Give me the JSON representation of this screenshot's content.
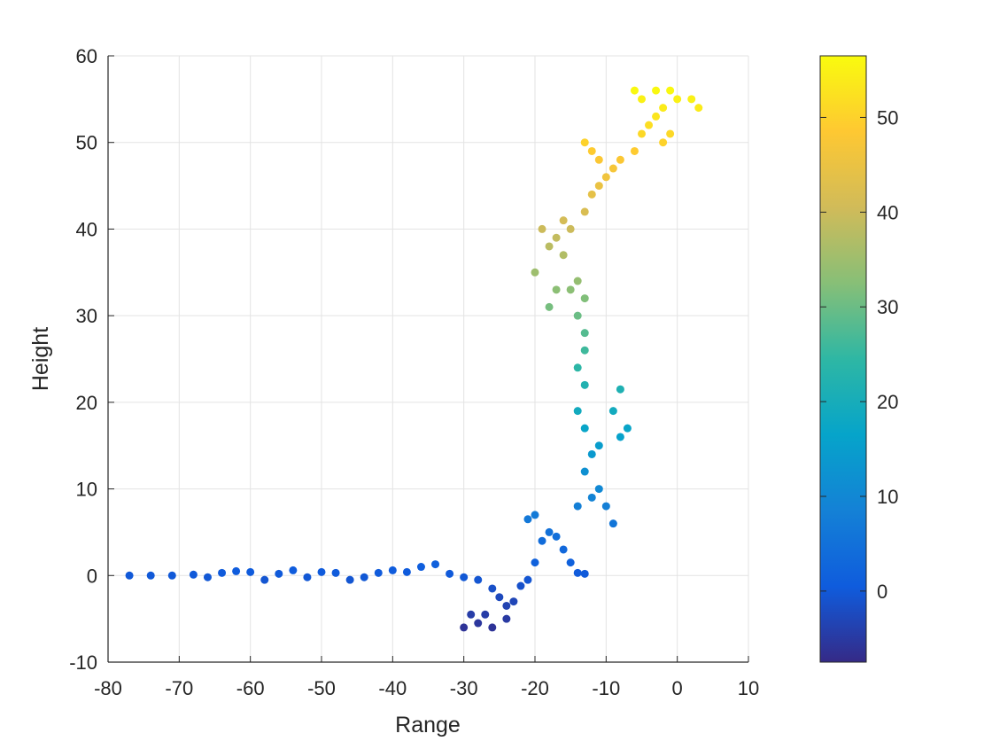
{
  "chart_data": {
    "type": "scatter",
    "xlabel": "Range",
    "ylabel": "Height",
    "xlim": [
      -80,
      10
    ],
    "ylim": [
      -10,
      60
    ],
    "xticks": [
      "-80",
      "-70",
      "-60",
      "-50",
      "-40",
      "-30",
      "-20",
      "-10",
      "0",
      "10"
    ],
    "yticks": [
      "-10",
      "0",
      "10",
      "20",
      "30",
      "40",
      "50",
      "60"
    ],
    "grid": true,
    "colormap": "parula",
    "color_by": "y",
    "colorbar": {
      "range": [
        -7.5,
        56.5
      ],
      "ticks": [
        "0",
        "10",
        "20",
        "30",
        "40",
        "50"
      ],
      "placement": "right"
    },
    "colormap_stops": [
      "#352a87",
      "#0f5cdd",
      "#1481d6",
      "#06a4ca",
      "#2eb7a4",
      "#87bf77",
      "#d1bb59",
      "#fec832",
      "#f9fb0e"
    ],
    "series": [
      {
        "points": [
          [
            -77,
            0
          ],
          [
            -74,
            0
          ],
          [
            -71,
            0
          ],
          [
            -68,
            0.1
          ],
          [
            -66,
            -0.2
          ],
          [
            -64,
            0.3
          ],
          [
            -62,
            0.5
          ],
          [
            -60,
            0.4
          ],
          [
            -58,
            -0.5
          ],
          [
            -56,
            0.2
          ],
          [
            -54,
            0.6
          ],
          [
            -52,
            -0.2
          ],
          [
            -50,
            0.4
          ],
          [
            -48,
            0.3
          ],
          [
            -46,
            -0.5
          ],
          [
            -44,
            -0.2
          ],
          [
            -42,
            0.3
          ],
          [
            -40,
            0.6
          ],
          [
            -38,
            0.4
          ],
          [
            -36,
            1
          ],
          [
            -34,
            1.3
          ],
          [
            -32,
            0.2
          ],
          [
            -30,
            -0.2
          ],
          [
            -28,
            -0.5
          ],
          [
            -26,
            -1.5
          ],
          [
            -25,
            -2.5
          ],
          [
            -24,
            -3.5
          ],
          [
            -23,
            -3
          ],
          [
            -27,
            -4.5
          ],
          [
            -26,
            -6
          ],
          [
            -28,
            -5.5
          ],
          [
            -30,
            -6
          ],
          [
            -29,
            -4.5
          ],
          [
            -24,
            -5
          ],
          [
            -22,
            -1.2
          ],
          [
            -21,
            -0.5
          ],
          [
            -20,
            1.5
          ],
          [
            -19,
            4
          ],
          [
            -21,
            6.5
          ],
          [
            -20,
            7
          ],
          [
            -18,
            5
          ],
          [
            -17,
            4.5
          ],
          [
            -16,
            3
          ],
          [
            -15,
            1.5
          ],
          [
            -14,
            0.3
          ],
          [
            -13,
            0.2
          ],
          [
            -14,
            8
          ],
          [
            -12,
            9
          ],
          [
            -11,
            10
          ],
          [
            -10,
            8
          ],
          [
            -9,
            6
          ],
          [
            -13,
            12
          ],
          [
            -12,
            14
          ],
          [
            -11,
            15
          ],
          [
            -13,
            17
          ],
          [
            -8,
            16
          ],
          [
            -7,
            17
          ],
          [
            -9,
            19
          ],
          [
            -8,
            21.5
          ],
          [
            -14,
            19
          ],
          [
            -13,
            22
          ],
          [
            -14,
            24
          ],
          [
            -13,
            26
          ],
          [
            -13,
            28
          ],
          [
            -14,
            30
          ],
          [
            -13,
            32
          ],
          [
            -14,
            34
          ],
          [
            -15,
            33
          ],
          [
            -17,
            33
          ],
          [
            -18,
            31
          ],
          [
            -20,
            35
          ],
          [
            -16,
            37
          ],
          [
            -18,
            38
          ],
          [
            -17,
            39
          ],
          [
            -19,
            40
          ],
          [
            -16,
            41
          ],
          [
            -15,
            40
          ],
          [
            -13,
            42
          ],
          [
            -12,
            44
          ],
          [
            -11,
            45
          ],
          [
            -10,
            46
          ],
          [
            -11,
            48
          ],
          [
            -12,
            49
          ],
          [
            -13,
            50
          ],
          [
            -9,
            47
          ],
          [
            -8,
            48
          ],
          [
            -6,
            49
          ],
          [
            -5,
            51
          ],
          [
            -4,
            52
          ],
          [
            -3,
            53
          ],
          [
            -2,
            54
          ],
          [
            -5,
            55
          ],
          [
            -6,
            56
          ],
          [
            -3,
            56
          ],
          [
            -1,
            56
          ],
          [
            0,
            55
          ],
          [
            2,
            55
          ],
          [
            3,
            54
          ],
          [
            -2,
            50
          ],
          [
            -1,
            51
          ]
        ]
      }
    ]
  }
}
